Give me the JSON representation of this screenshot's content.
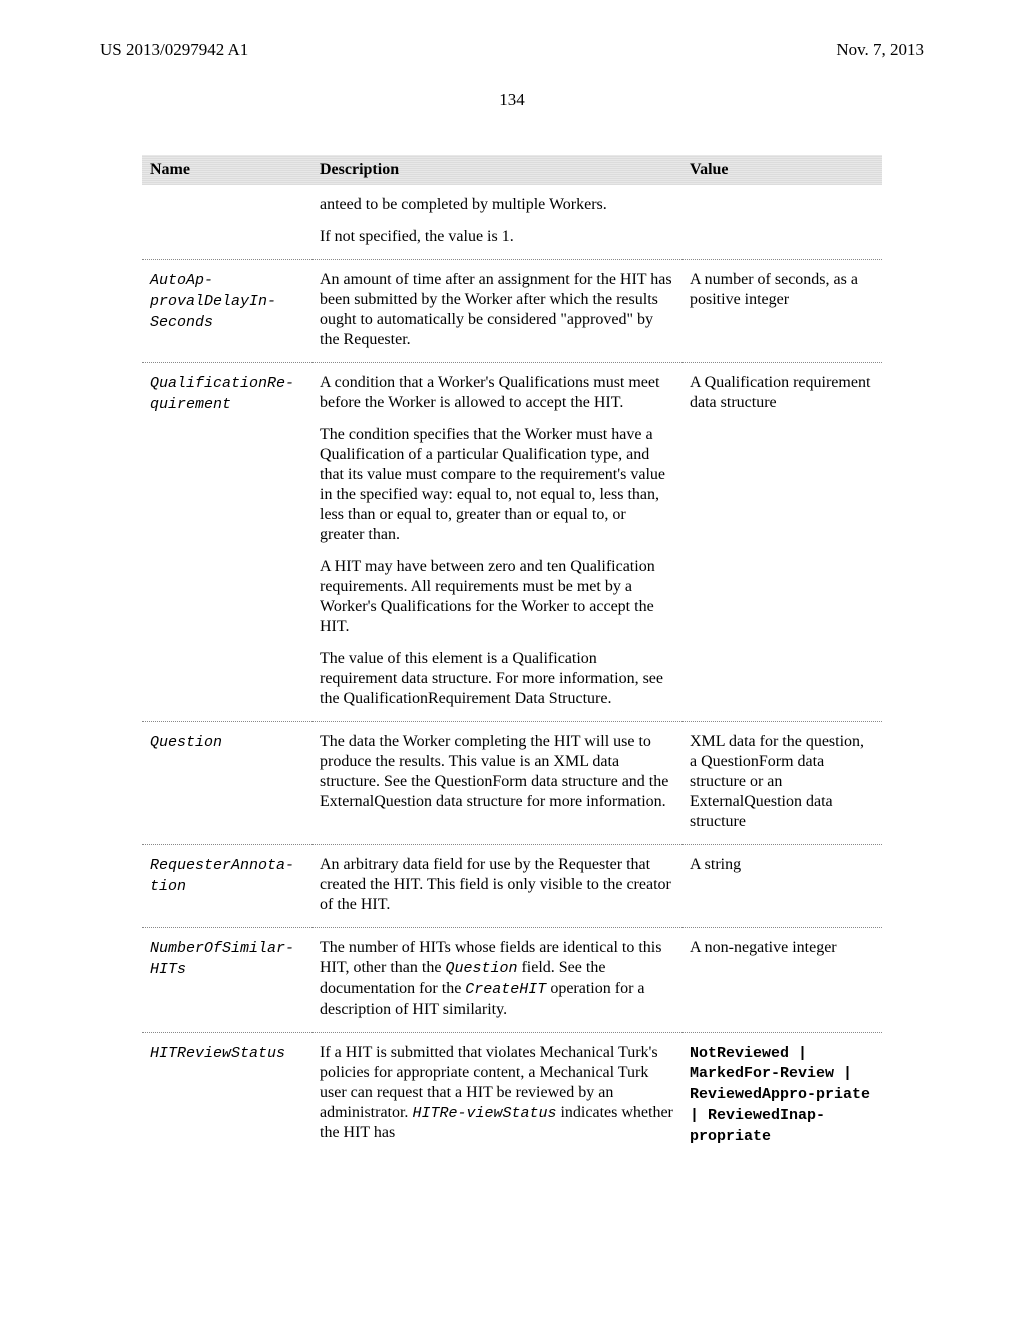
{
  "header": {
    "doc_id": "US 2013/0297942 A1",
    "date": "Nov. 7, 2013",
    "page_number": "134"
  },
  "table": {
    "headers": {
      "name": "Name",
      "description": "Description",
      "value": "Value"
    },
    "rows": {
      "row0": {
        "name": "",
        "desc_p1": "anteed to be completed by multiple Workers.",
        "desc_p2": "If not specified, the value is 1.",
        "value": ""
      },
      "row1": {
        "name": "AutoAp-provalDelayIn-Seconds",
        "desc": "An amount of time after an assignment for the HIT has been submitted by the Worker after which the results ought to automatically be considered \"approved\" by the Requester.",
        "value": "A number of seconds, as a positive integer"
      },
      "row2": {
        "name": "QualificationRe-quirement",
        "desc_p1": "A condition that a Worker's Qualifications must meet before the Worker is allowed to accept the HIT.",
        "desc_p2": "The condition specifies that the Worker must have a Qualification of a particular Qualification type, and that its value must compare to the requirement's value in the specified way: equal to, not equal to, less than, less than or equal to, greater than or equal to, or greater than.",
        "desc_p3": "A HIT may have between zero and ten Qualification requirements. All requirements must be met by a Worker's Qualifications for the Worker to accept the HIT.",
        "desc_p4": "The value of this element is a Qualification requirement data structure. For more information, see the QualificationRequirement Data Structure.",
        "value": "A Qualification requirement data structure"
      },
      "row3": {
        "name": "Question",
        "desc": "The data the Worker completing the HIT will use to produce the results. This value is an XML data structure. See the QuestionForm data structure and the ExternalQuestion data structure for more information.",
        "value": "XML data for the question, a QuestionForm data structure or an ExternalQuestion data structure"
      },
      "row4": {
        "name": "RequesterAnnota-tion",
        "desc": "An arbitrary data field for use by the Requester that created the HIT. This field is only visible to the creator of the HIT.",
        "value": "A string"
      },
      "row5": {
        "name": "NumberOfSimilar-HITs",
        "desc_a": "The number of HITs whose fields are identical to this HIT, other than the ",
        "desc_code1": "Question",
        "desc_b": " field. See the documentation for the ",
        "desc_code2": "CreateHIT",
        "desc_c": " operation for a description of HIT similarity.",
        "value": "A non-negative integer"
      },
      "row6": {
        "name": "HITReviewStatus",
        "desc_a": "If a HIT is submitted that violates Mechanical Turk's policies for appropriate content, a Mechanical Turk user can request that a HIT be reviewed by an administrator. ",
        "desc_code1": "HITRe-viewStatus",
        "desc_b": " indicates whether the HIT has",
        "value": "NotReviewed | MarkedFor-Review | ReviewedAppro-priate | ReviewedInap-propriate"
      }
    }
  }
}
